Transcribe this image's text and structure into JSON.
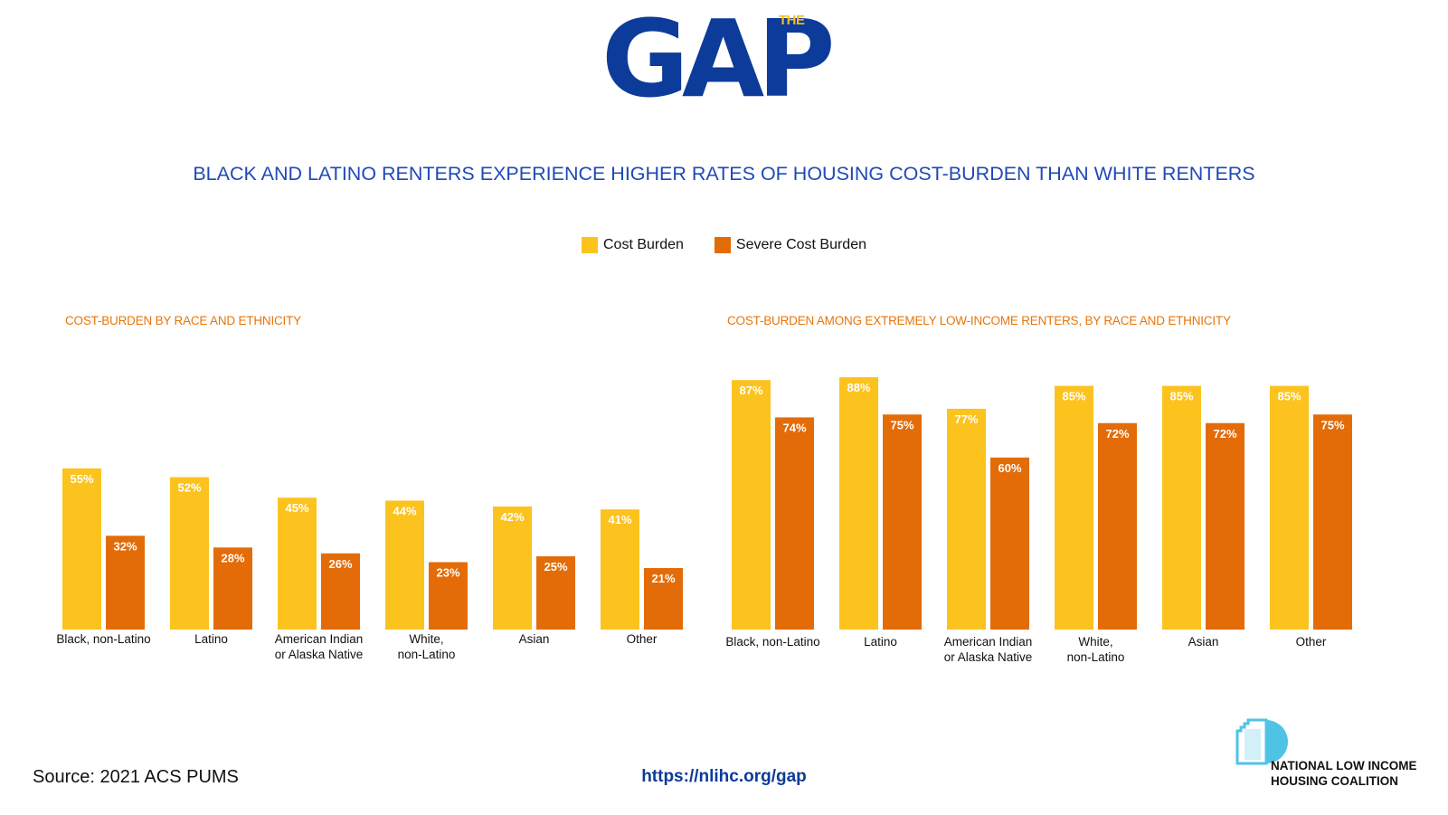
{
  "logo": {
    "small": "THE",
    "big": "GAP"
  },
  "title": "BLACK AND LATINO RENTERS EXPERIENCE HIGHER RATES OF HOUSING COST-BURDEN THAN WHITE RENTERS",
  "legend": [
    {
      "label": "Cost Burden",
      "color": "#fcc31e"
    },
    {
      "label": "Severe Cost Burden",
      "color": "#e36c09"
    }
  ],
  "chart_data": [
    {
      "type": "bar",
      "title": "COST-BURDEN BY RACE AND ETHNICITY",
      "categories": [
        "Black, non-Latino",
        "Latino",
        "American Indian\nor Alaska Native",
        "White,\nnon-Latino",
        "Asian",
        "Other"
      ],
      "series": [
        {
          "name": "Cost Burden",
          "values": [
            55,
            52,
            45,
            44,
            42,
            41
          ],
          "labels": [
            "55%",
            "52%",
            "45%",
            "44%",
            "42%",
            "41%"
          ],
          "color": "#fcc31e"
        },
        {
          "name": "Severe Cost Burden",
          "values": [
            32,
            28,
            26,
            23,
            25,
            21
          ],
          "labels": [
            "32%",
            "28%",
            "26%",
            "23%",
            "25%",
            "21%"
          ],
          "color": "#e36c09"
        }
      ],
      "ylim": [
        0,
        100
      ]
    },
    {
      "type": "bar",
      "title": "COST-BURDEN AMONG EXTREMELY LOW-INCOME RENTERS, BY RACE AND ETHNICITY",
      "categories": [
        "Black, non-Latino",
        "Latino",
        "American Indian\nor Alaska Native",
        "White,\nnon-Latino",
        "Asian",
        "Other"
      ],
      "series": [
        {
          "name": "Cost Burden",
          "values": [
            87,
            88,
            77,
            85,
            85,
            85
          ],
          "labels": [
            "87%",
            "88%",
            "77%",
            "85%",
            "85%",
            "85%"
          ],
          "color": "#fcc31e"
        },
        {
          "name": "Severe Cost Burden",
          "values": [
            74,
            75,
            60,
            72,
            72,
            75
          ],
          "labels": [
            "74%",
            "75%",
            "60%",
            "72%",
            "72%",
            "75%"
          ],
          "color": "#e36c09"
        }
      ],
      "ylim": [
        0,
        100
      ]
    }
  ],
  "footer": {
    "source": "Source: 2021 ACS PUMS",
    "url": "https://nlihc.org/gap",
    "org_line1": "NATIONAL LOW INCOME",
    "org_line2": "HOUSING COALITION"
  }
}
